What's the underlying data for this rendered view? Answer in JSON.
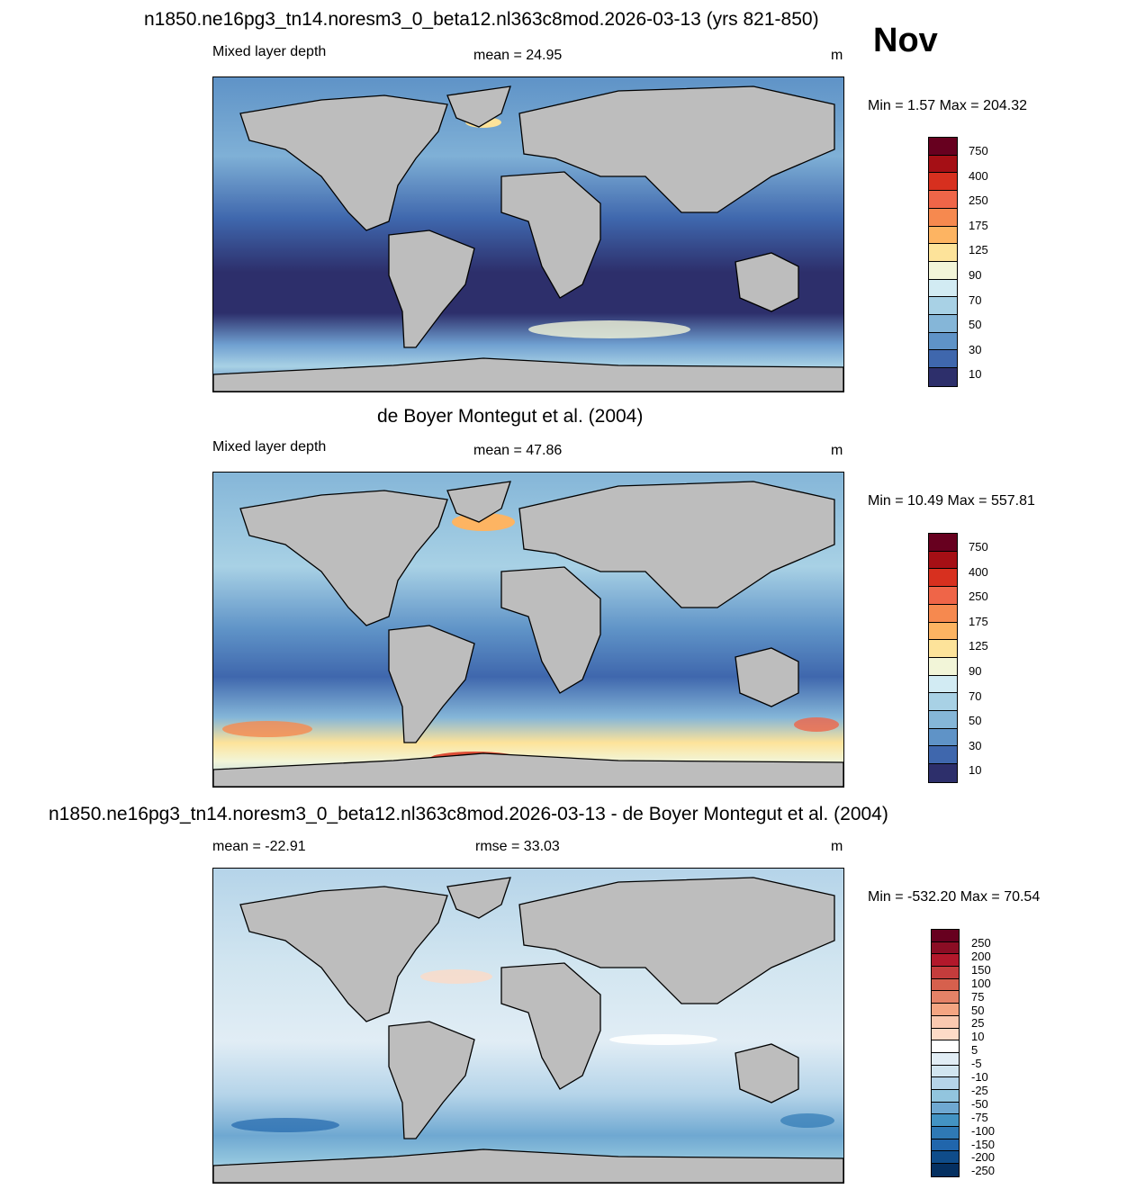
{
  "figure": {
    "title_top": "n1850.ne16pg3_tn14.noresm3_0_beta12.nl363c8mod.2026-03-13 (yrs 821-850)",
    "month": "Nov",
    "title_mid": "de Boyer Montegut et al. (2004)",
    "title_bottom": "n1850.ne16pg3_tn14.noresm3_0_beta12.nl363c8mod.2026-03-13 - de Boyer Montegut et al. (2004)"
  },
  "panels": [
    {
      "left_label": "Mixed layer depth",
      "center_label": "mean =  24.95",
      "units": "m",
      "minmax": "Min =   1.57 Max = 204.32",
      "colorbar": {
        "colors": [
          "#67001f",
          "#a50f15",
          "#d7301f",
          "#ef6548",
          "#f6894f",
          "#fdb462",
          "#fde39a",
          "#f2f5d8",
          "#d2ebf3",
          "#a8d1e5",
          "#85b6d8",
          "#5f93c7",
          "#3f67ad",
          "#2d2f6b"
        ],
        "labels": [
          "750",
          "400",
          "250",
          "175",
          "125",
          "90",
          "70",
          "50",
          "30",
          "10"
        ]
      }
    },
    {
      "left_label": "Mixed layer depth",
      "center_label": "mean =  47.86",
      "units": "m",
      "minmax": "Min =  10.49 Max = 557.81",
      "colorbar": {
        "colors": [
          "#67001f",
          "#a50f15",
          "#d7301f",
          "#ef6548",
          "#f6894f",
          "#fdb462",
          "#fde39a",
          "#f2f5d8",
          "#d2ebf3",
          "#a8d1e5",
          "#85b6d8",
          "#5f93c7",
          "#3f67ad",
          "#2d2f6b"
        ],
        "labels": [
          "750",
          "400",
          "250",
          "175",
          "125",
          "90",
          "70",
          "50",
          "30",
          "10"
        ]
      }
    },
    {
      "left_label": "mean = -22.91",
      "center_label": "rmse =  33.03",
      "units": "m",
      "minmax": "Min = -532.20 Max =  70.54",
      "colorbar": {
        "colors": [
          "#67001f",
          "#8b0d24",
          "#b2182b",
          "#c43c3c",
          "#d6604d",
          "#e58267",
          "#f4a582",
          "#f9c9b0",
          "#fddbc7",
          "#ffffff",
          "#e1edf5",
          "#d1e5f0",
          "#b5d4e9",
          "#92c5de",
          "#6fa8d1",
          "#4393c3",
          "#2f79b5",
          "#2166ac",
          "#0f4c8a",
          "#053061"
        ],
        "labels": [
          "250",
          "200",
          "150",
          "100",
          "75",
          "50",
          "25",
          "10",
          "5",
          "-5",
          "-10",
          "-25",
          "-50",
          "-75",
          "-100",
          "-150",
          "-200",
          "-250"
        ]
      }
    }
  ]
}
